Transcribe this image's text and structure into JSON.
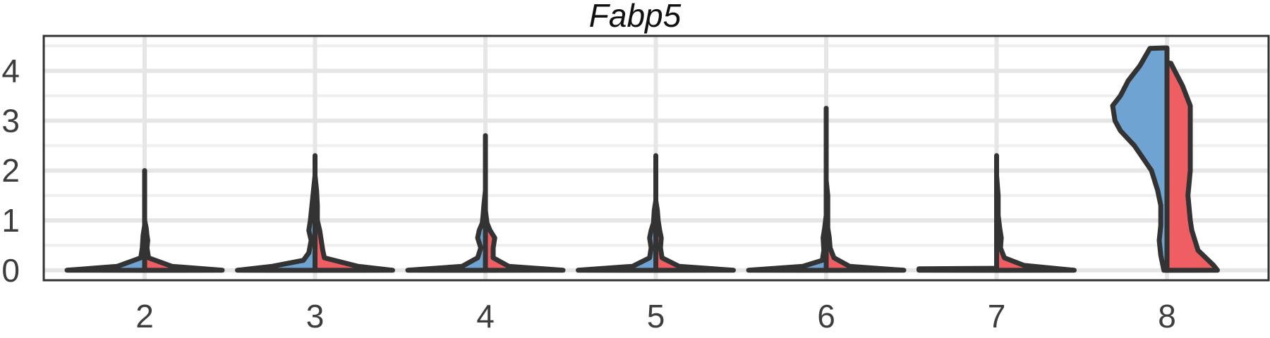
{
  "chart_data": {
    "type": "violin",
    "title": "Fabp5",
    "xlabel": "",
    "ylabel": "",
    "ylim": [
      -0.2,
      4.7
    ],
    "y_ticks": [
      0,
      1,
      2,
      3,
      4
    ],
    "grid": true,
    "legend": "none",
    "colors": {
      "left": "#6FA4D2",
      "right": "#EE5E63",
      "outline": "#333333"
    },
    "categories": [
      "2",
      "3",
      "4",
      "5",
      "6",
      "7",
      "8"
    ],
    "groups": [
      {
        "label": "2",
        "left": [
          [
            0,
            1.0
          ],
          [
            0.08,
            0.35
          ],
          [
            0.25,
            0.05
          ],
          [
            0.45,
            0.03
          ],
          [
            0.7,
            0.02
          ],
          [
            0.9,
            0.0
          ],
          [
            1.2,
            0.0
          ],
          [
            2.0,
            0.0
          ]
        ],
        "right": [
          [
            0,
            1.0
          ],
          [
            0.08,
            0.35
          ],
          [
            0.25,
            0.05
          ],
          [
            0.45,
            0.03
          ],
          [
            0.6,
            0.04
          ],
          [
            0.7,
            0.03
          ],
          [
            0.85,
            0.02
          ],
          [
            1.0,
            0.0
          ],
          [
            1.4,
            0.0
          ]
        ]
      },
      {
        "label": "3",
        "left": [
          [
            0,
            1.0
          ],
          [
            0.08,
            0.55
          ],
          [
            0.2,
            0.15
          ],
          [
            0.35,
            0.08
          ],
          [
            0.6,
            0.05
          ],
          [
            0.8,
            0.08
          ],
          [
            1.0,
            0.06
          ],
          [
            1.3,
            0.04
          ],
          [
            1.6,
            0.02
          ],
          [
            1.9,
            0.0
          ],
          [
            2.3,
            0.0
          ]
        ],
        "right": [
          [
            0,
            1.0
          ],
          [
            0.08,
            0.55
          ],
          [
            0.25,
            0.12
          ],
          [
            0.4,
            0.1
          ],
          [
            0.6,
            0.08
          ],
          [
            0.8,
            0.06
          ],
          [
            1.0,
            0.03
          ],
          [
            1.3,
            0.03
          ],
          [
            1.6,
            0.02
          ],
          [
            1.9,
            0.0
          ],
          [
            2.1,
            0.0
          ]
        ]
      },
      {
        "label": "4",
        "left": [
          [
            0,
            1.0
          ],
          [
            0.08,
            0.3
          ],
          [
            0.25,
            0.1
          ],
          [
            0.45,
            0.06
          ],
          [
            0.65,
            0.1
          ],
          [
            0.8,
            0.08
          ],
          [
            0.95,
            0.04
          ],
          [
            1.1,
            0.03
          ],
          [
            1.3,
            0.02
          ],
          [
            1.6,
            0.0
          ],
          [
            2.7,
            0.0
          ]
        ],
        "right": [
          [
            0,
            1.0
          ],
          [
            0.08,
            0.3
          ],
          [
            0.25,
            0.1
          ],
          [
            0.45,
            0.1
          ],
          [
            0.65,
            0.12
          ],
          [
            0.8,
            0.06
          ],
          [
            0.95,
            0.02
          ],
          [
            1.2,
            0.0
          ],
          [
            1.6,
            0.0
          ]
        ]
      },
      {
        "label": "5",
        "left": [
          [
            0,
            1.0
          ],
          [
            0.08,
            0.3
          ],
          [
            0.25,
            0.08
          ],
          [
            0.45,
            0.06
          ],
          [
            0.65,
            0.08
          ],
          [
            0.8,
            0.06
          ],
          [
            0.95,
            0.03
          ],
          [
            1.2,
            0.02
          ],
          [
            1.4,
            0.0
          ],
          [
            2.3,
            0.0
          ]
        ],
        "right": [
          [
            0,
            1.0
          ],
          [
            0.08,
            0.3
          ],
          [
            0.25,
            0.08
          ],
          [
            0.45,
            0.06
          ],
          [
            0.65,
            0.07
          ],
          [
            0.8,
            0.05
          ],
          [
            1.0,
            0.03
          ],
          [
            1.2,
            0.02
          ],
          [
            1.4,
            0.0
          ],
          [
            1.6,
            0.0
          ]
        ]
      },
      {
        "label": "6",
        "left": [
          [
            0,
            1.0
          ],
          [
            0.08,
            0.3
          ],
          [
            0.2,
            0.05
          ],
          [
            0.4,
            0.03
          ],
          [
            0.65,
            0.04
          ],
          [
            0.85,
            0.02
          ],
          [
            1.1,
            0.0
          ],
          [
            3.25,
            0.0
          ]
        ],
        "right": [
          [
            0,
            1.0
          ],
          [
            0.08,
            0.3
          ],
          [
            0.25,
            0.1
          ],
          [
            0.45,
            0.05
          ],
          [
            0.65,
            0.04
          ],
          [
            0.85,
            0.02
          ],
          [
            1.2,
            0.02
          ],
          [
            1.5,
            0.02
          ],
          [
            1.8,
            0.0
          ],
          [
            2.0,
            0.0
          ]
        ]
      },
      {
        "label": "7",
        "left": [
          [
            0,
            1.0
          ],
          [
            0.03,
            1.0
          ],
          [
            0.04,
            0.0
          ],
          [
            0.1,
            0.0
          ]
        ],
        "right": [
          [
            0,
            1.0
          ],
          [
            0.1,
            0.35
          ],
          [
            0.25,
            0.1
          ],
          [
            0.45,
            0.05
          ],
          [
            0.65,
            0.06
          ],
          [
            0.85,
            0.04
          ],
          [
            1.1,
            0.02
          ],
          [
            1.5,
            0.02
          ],
          [
            1.9,
            0.0
          ],
          [
            2.3,
            0.0
          ]
        ]
      },
      {
        "label": "8",
        "left": [
          [
            0,
            0.04
          ],
          [
            0.3,
            0.08
          ],
          [
            0.6,
            0.1
          ],
          [
            0.9,
            0.08
          ],
          [
            1.3,
            0.08
          ],
          [
            1.6,
            0.12
          ],
          [
            2.0,
            0.2
          ],
          [
            2.5,
            0.42
          ],
          [
            2.8,
            0.6
          ],
          [
            3.0,
            0.67
          ],
          [
            3.3,
            0.7
          ],
          [
            3.5,
            0.6
          ],
          [
            3.8,
            0.5
          ],
          [
            4.1,
            0.35
          ],
          [
            4.45,
            0.22
          ],
          [
            4.46,
            0.0
          ]
        ],
        "right": [
          [
            0,
            0.65
          ],
          [
            0.1,
            0.6
          ],
          [
            0.4,
            0.4
          ],
          [
            0.8,
            0.32
          ],
          [
            1.0,
            0.3
          ],
          [
            1.5,
            0.27
          ],
          [
            2.0,
            0.3
          ],
          [
            2.5,
            0.3
          ],
          [
            2.9,
            0.3
          ],
          [
            3.3,
            0.3
          ],
          [
            3.7,
            0.2
          ],
          [
            4.0,
            0.1
          ],
          [
            4.15,
            0.05
          ],
          [
            4.16,
            0.0
          ]
        ]
      }
    ]
  }
}
